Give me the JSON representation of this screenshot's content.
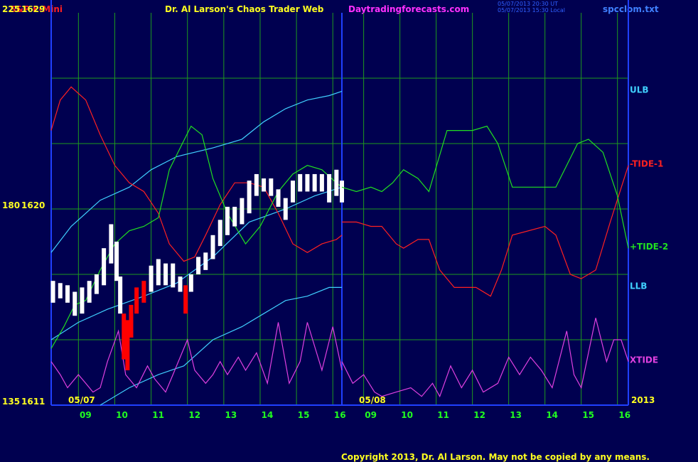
{
  "chart_data": [
    {
      "type": "line",
      "symbol": "S&P E-Mini",
      "title": "Dr. Al Larson's Chaos Trader Web",
      "website": "Daytradingforecasts.com",
      "timestamps": [
        "05/07/2013 20:30 UT",
        "05/07/2013 15:30 Local"
      ],
      "file": "spcclom.txt",
      "copyright": "Copyright 2013, Dr. Al Larson. May not be copied by any means.",
      "date_label": "05/07",
      "year": "2013",
      "xlim": [
        8.25,
        16.25
      ],
      "xticks": [
        {
          "value": 9,
          "label": "09"
        },
        {
          "value": 10,
          "label": "10"
        },
        {
          "value": 11,
          "label": "11"
        },
        {
          "value": 12,
          "label": "12"
        },
        {
          "value": 13,
          "label": "13"
        },
        {
          "value": 14,
          "label": "14"
        },
        {
          "value": 15,
          "label": "15"
        },
        {
          "value": 16,
          "label": "16"
        }
      ],
      "ylim": [
        135,
        225
      ],
      "yticks": [
        135,
        180,
        225
      ],
      "minor_yticks": [
        150,
        165,
        195,
        210
      ],
      "y2lim": [
        1611,
        1629
      ],
      "y2ticks": [
        1611,
        1620,
        1629
      ],
      "grid": true,
      "grid_color": "#1e9a1e",
      "series": [
        {
          "name": "ULB",
          "color": "#40d0ff",
          "x": [
            8.25,
            8.8,
            9.6,
            10.4,
            11.0,
            11.7,
            12.7,
            13.5,
            14.1,
            14.7,
            15.3,
            15.9,
            16.25
          ],
          "values": [
            170,
            176,
            182,
            185,
            189,
            192,
            194,
            196,
            200,
            203,
            205,
            206,
            207
          ]
        },
        {
          "color": "#40d0ff",
          "x": [
            8.25,
            9.0,
            9.8,
            10.8,
            11.7,
            12.7,
            13.7,
            14.7,
            15.5,
            16.25
          ],
          "values": [
            150,
            154,
            157,
            160,
            163,
            169,
            177,
            180,
            183,
            185
          ]
        },
        {
          "name": "LLB",
          "color": "#40d0ff",
          "x": [
            9.6,
            10.4,
            11.2,
            11.9,
            12.7,
            13.5,
            14.1,
            14.7,
            15.3,
            15.9,
            16.25
          ],
          "values": [
            135,
            139,
            142,
            144,
            150,
            153,
            156,
            159,
            160,
            162,
            162
          ]
        },
        {
          "color": "#ff2020",
          "x": [
            8.25,
            8.5,
            8.8,
            9.2,
            9.6,
            10.0,
            10.4,
            10.8,
            11.2,
            11.5,
            11.9,
            12.2,
            12.5,
            12.9,
            13.3,
            13.7,
            14.1,
            14.5,
            14.9,
            15.3,
            15.7,
            16.1,
            16.25
          ],
          "values": [
            198,
            205,
            208,
            205,
            197,
            190,
            186,
            184,
            179,
            172,
            168,
            169,
            174,
            181,
            186,
            186,
            185,
            179,
            172,
            170,
            172,
            173,
            174
          ]
        },
        {
          "color": "#20e020",
          "x": [
            8.25,
            8.6,
            8.9,
            9.2,
            9.6,
            10.0,
            10.4,
            10.8,
            11.2,
            11.5,
            11.8,
            12.1,
            12.4,
            12.7,
            13.1,
            13.6,
            14.0,
            14.5,
            14.9,
            15.3,
            15.7,
            16.1,
            16.25
          ],
          "values": [
            148,
            153,
            158,
            159,
            166,
            172,
            175,
            176,
            178,
            189,
            194,
            199,
            197,
            187,
            179,
            172,
            176,
            184,
            188,
            190,
            189,
            186,
            185
          ]
        },
        {
          "color": "#e040e0",
          "x": [
            8.25,
            8.5,
            8.7,
            9.0,
            9.2,
            9.4,
            9.6,
            9.8,
            10.1,
            10.3,
            10.6,
            10.9,
            11.1,
            11.4,
            11.6,
            12.0,
            12.2,
            12.5,
            12.7,
            12.9,
            13.1,
            13.4,
            13.6,
            13.9,
            14.2,
            14.5,
            14.8,
            15.1,
            15.3,
            15.7,
            16.0,
            16.25
          ],
          "values": [
            145,
            142,
            139,
            142,
            140,
            138,
            139,
            145,
            152,
            142,
            139,
            144,
            141,
            138,
            142,
            150,
            143,
            140,
            142,
            145,
            142,
            146,
            143,
            147,
            140,
            154,
            140,
            145,
            154,
            143,
            153,
            143
          ]
        }
      ],
      "price": {
        "axis": "y2",
        "x": [
          8.3,
          8.5,
          8.7,
          8.9,
          9.1,
          9.3,
          9.5,
          9.7,
          9.9,
          10.05,
          10.15,
          10.25,
          10.35,
          10.45,
          10.6,
          10.8,
          11.0,
          11.2,
          11.4,
          11.6,
          11.8,
          11.95,
          12.1,
          12.3,
          12.5,
          12.7,
          12.9,
          13.1,
          13.3,
          13.5,
          13.7,
          13.9,
          14.1,
          14.3,
          14.5,
          14.7,
          14.9,
          15.1,
          15.3,
          15.5,
          15.7,
          15.9,
          16.1,
          16.25
        ],
        "high": [
          1616.7,
          1616.6,
          1616.5,
          1616.2,
          1616.4,
          1616.7,
          1617.0,
          1618.2,
          1619.3,
          1618.5,
          1616.9,
          1615.2,
          1614.9,
          1615.6,
          1616.4,
          1616.7,
          1617.4,
          1617.7,
          1617.5,
          1617.5,
          1616.9,
          1616.5,
          1617.0,
          1617.8,
          1618.0,
          1618.8,
          1619.5,
          1620.1,
          1620.1,
          1620.5,
          1621.3,
          1621.6,
          1621.4,
          1621.4,
          1620.9,
          1620.5,
          1621.3,
          1621.6,
          1621.6,
          1621.6,
          1621.6,
          1621.6,
          1621.8,
          1621.3
        ],
        "low": [
          1615.7,
          1615.9,
          1615.7,
          1615.1,
          1615.2,
          1615.7,
          1616.1,
          1616.5,
          1617.5,
          1616.7,
          1615.2,
          1613.1,
          1612.6,
          1614.1,
          1615.2,
          1615.7,
          1616.2,
          1616.5,
          1616.5,
          1616.4,
          1616.2,
          1615.2,
          1616.2,
          1617.0,
          1617.2,
          1617.7,
          1618.3,
          1618.8,
          1619.2,
          1619.3,
          1619.8,
          1620.6,
          1620.8,
          1620.6,
          1620.1,
          1619.5,
          1620.3,
          1620.8,
          1620.8,
          1620.8,
          1620.8,
          1620.3,
          1620.6,
          1620.3
        ],
        "colors": [
          "#ffffff",
          "#ffffff",
          "#ffffff",
          "#ffffff",
          "#ffffff",
          "#ffffff",
          "#ffffff",
          "#ffffff",
          "#ffffff",
          "#ffffff",
          "#ffffff",
          "#ff0000",
          "#ff0000",
          "#ff0000",
          "#ff0000",
          "#ff0000",
          "#ffffff",
          "#ffffff",
          "#ffffff",
          "#ffffff",
          "#ffffff",
          "#ff0000",
          "#ffffff",
          "#ffffff",
          "#ffffff",
          "#ffffff",
          "#ffffff",
          "#ffffff",
          "#ffffff",
          "#ffffff",
          "#ffffff",
          "#ffffff",
          "#ffffff",
          "#ffffff",
          "#ffffff",
          "#ffffff",
          "#ffffff",
          "#ffffff",
          "#ffffff",
          "#ffffff",
          "#ffffff",
          "#ffffff",
          "#ffffff",
          "#ffffff"
        ]
      }
    },
    {
      "type": "line",
      "date_label": "05/08",
      "xlim": [
        8.4,
        16.3
      ],
      "xticks": [
        {
          "value": 9,
          "label": "09"
        },
        {
          "value": 10,
          "label": "10"
        },
        {
          "value": 11,
          "label": "11"
        },
        {
          "value": 12,
          "label": "12"
        },
        {
          "value": 13,
          "label": "13"
        },
        {
          "value": 14,
          "label": "14"
        },
        {
          "value": 15,
          "label": "15"
        },
        {
          "value": 16,
          "label": "16"
        }
      ],
      "ylim": [
        135,
        225
      ],
      "series": [
        {
          "name": "-TIDE-1",
          "color": "#ff2020",
          "x": [
            8.4,
            8.8,
            9.2,
            9.5,
            9.9,
            10.1,
            10.5,
            10.8,
            11.1,
            11.5,
            12.1,
            12.5,
            12.8,
            13.1,
            14.0,
            14.3,
            14.7,
            15.0,
            15.4,
            15.8,
            16.3
          ],
          "values": [
            177,
            177,
            176,
            176,
            172,
            171,
            173,
            173,
            166,
            162,
            162,
            160,
            166,
            174,
            176,
            174,
            165,
            164,
            166,
            177,
            190
          ]
        },
        {
          "name": "+TIDE-2",
          "color": "#20e020",
          "x": [
            8.4,
            8.8,
            9.2,
            9.5,
            9.8,
            10.1,
            10.5,
            10.8,
            11.3,
            12.0,
            12.4,
            12.7,
            13.1,
            13.9,
            14.3,
            14.9,
            15.2,
            15.6,
            16.0,
            16.3
          ],
          "values": [
            185,
            184,
            185,
            184,
            186,
            189,
            187,
            184,
            198,
            198,
            199,
            195,
            185,
            185,
            185,
            195,
            196,
            193,
            183,
            171
          ]
        },
        {
          "name": "XTIDE",
          "color": "#e040e0",
          "x": [
            8.4,
            8.7,
            9.0,
            9.3,
            9.5,
            9.9,
            10.3,
            10.6,
            10.9,
            11.1,
            11.4,
            11.7,
            12.0,
            12.3,
            12.7,
            13.0,
            13.3,
            13.6,
            13.9,
            14.2,
            14.6,
            14.8,
            15.0,
            15.4,
            15.7,
            15.9,
            16.1,
            16.3
          ],
          "values": [
            145,
            140,
            142,
            138,
            137,
            138,
            139,
            137,
            140,
            137,
            144,
            139,
            143,
            138,
            140,
            146,
            142,
            146,
            143,
            139,
            152,
            142,
            139,
            155,
            145,
            150,
            150,
            145
          ]
        }
      ]
    }
  ]
}
